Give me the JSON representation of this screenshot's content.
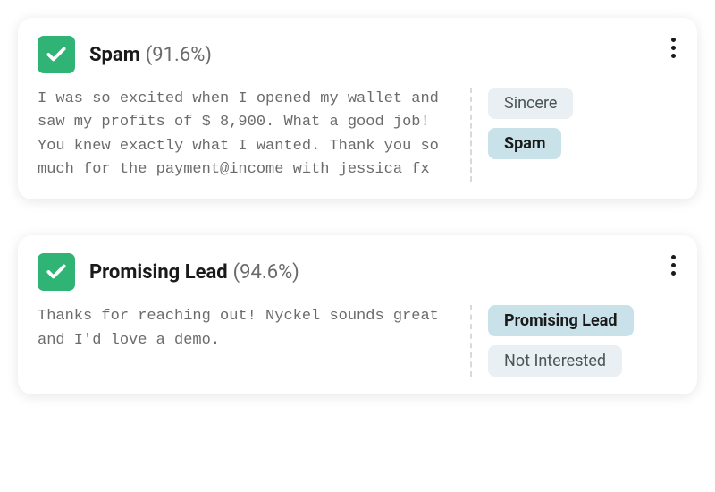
{
  "cards": [
    {
      "label": "Spam",
      "confidence": "(91.6%)",
      "text": "I was so excited when I opened my wallet and saw my profits of $ 8,900. What a good job! You knew exactly what I wanted. Thank you so much for the payment@income_with_jessica_fx",
      "tags": [
        {
          "label": "Sincere",
          "selected": false
        },
        {
          "label": "Spam",
          "selected": true
        }
      ]
    },
    {
      "label": "Promising Lead",
      "confidence": "(94.6%)",
      "text": "Thanks for reaching out! Nyckel sounds great and I'd love a demo.",
      "tags": [
        {
          "label": "Promising Lead",
          "selected": true
        },
        {
          "label": "Not Interested",
          "selected": false
        }
      ]
    }
  ],
  "colors": {
    "check_bg": "#2fb475",
    "tag_bg": "#e9eff2",
    "tag_selected_bg": "#c9e2e9"
  }
}
